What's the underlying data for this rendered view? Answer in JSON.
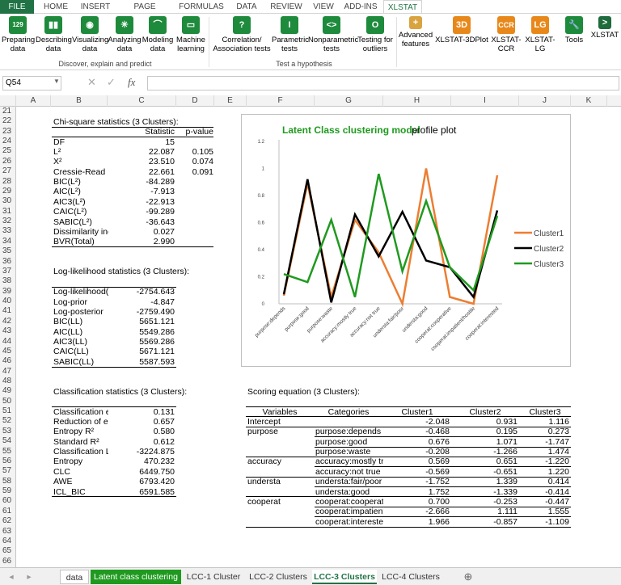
{
  "ribbon": {
    "tabs": [
      "FILE",
      "HOME",
      "INSERT",
      "PAGE LAYOUT",
      "FORMULAS",
      "DATA",
      "REVIEW",
      "VIEW",
      "ADD-INS",
      "XLSTAT"
    ],
    "buttons": [
      {
        "l1": "Preparing",
        "l2": "data",
        "icon": "129"
      },
      {
        "l1": "Describing",
        "l2": "data",
        "icon": "bars"
      },
      {
        "l1": "Visualizing",
        "l2": "data",
        "icon": "eye"
      },
      {
        "l1": "Analyzing",
        "l2": "data",
        "icon": "star"
      },
      {
        "l1": "Modeling",
        "l2": "data",
        "icon": "curve"
      },
      {
        "l1": "Machine",
        "l2": "learning",
        "icon": "screen"
      },
      {
        "l1": "Correlation/",
        "l2": "Association tests",
        "icon": "?"
      },
      {
        "l1": "Parametric",
        "l2": "tests",
        "icon": "I"
      },
      {
        "l1": "Nonparametric",
        "l2": "tests",
        "icon": "<>"
      },
      {
        "l1": "Testing for",
        "l2": "outliers",
        "icon": "O"
      },
      {
        "l1": "Advanced",
        "l2": "features",
        "icon": "+"
      },
      {
        "l1": "XLSTAT-3DPlot",
        "l2": "",
        "icon": "3D"
      },
      {
        "l1": "XLSTAT-",
        "l2": "CCR",
        "icon": "CCR"
      },
      {
        "l1": "XLSTAT-",
        "l2": "LG",
        "icon": "LG"
      },
      {
        "l1": "Tools",
        "l2": "",
        "icon": "wrench"
      },
      {
        "l1": "XLSTAT",
        "l2": "",
        "icon": ">"
      }
    ],
    "group1": "Discover, explain and predict",
    "group2": "Test a hypothesis"
  },
  "formula": {
    "namebox": "Q54",
    "fx": "fx",
    "value": ""
  },
  "columns": [
    "A",
    "B",
    "C",
    "D",
    "E",
    "F",
    "G",
    "H",
    "I",
    "J",
    "K"
  ],
  "rows": [
    21,
    22,
    23,
    24,
    25,
    26,
    27,
    28,
    29,
    30,
    31,
    32,
    33,
    34,
    35,
    36,
    37,
    38,
    39,
    40,
    41,
    42,
    43,
    44,
    45,
    46,
    47,
    48,
    49,
    50,
    51,
    52,
    53,
    54,
    55,
    56,
    57,
    58,
    59,
    60,
    61,
    62,
    63,
    64,
    65,
    66
  ],
  "chi": {
    "title": "Chi-square statistics (3 Clusters):",
    "hdr": [
      "Statistic",
      "p-value"
    ],
    "rows": [
      [
        "DF",
        "15",
        ""
      ],
      [
        "L²",
        "22.087",
        "0.105"
      ],
      [
        "X²",
        "23.510",
        "0.074"
      ],
      [
        "Cressie-Read",
        "22.661",
        "0.091"
      ],
      [
        "BIC(L²)",
        "-84.289",
        ""
      ],
      [
        "AIC(L²)",
        "-7.913",
        ""
      ],
      [
        "AIC3(L²)",
        "-22.913",
        ""
      ],
      [
        "CAIC(L²)",
        "-99.289",
        ""
      ],
      [
        "SABIC(L²)",
        "-36.643",
        ""
      ],
      [
        "Dissimilarity ind",
        "0.027",
        ""
      ],
      [
        "BVR(Total)",
        "2.990",
        ""
      ]
    ]
  },
  "ll": {
    "title": "Log-likelihood statistics (3 Clusters):",
    "rows": [
      [
        "Log-likelihood(L",
        "-2754.643"
      ],
      [
        "Log-prior",
        "-4.847"
      ],
      [
        "Log-posterior",
        "-2759.490"
      ],
      [
        "BIC(LL)",
        "5651.121"
      ],
      [
        "AIC(LL)",
        "5549.286"
      ],
      [
        "AIC3(LL)",
        "5569.286"
      ],
      [
        "CAIC(LL)",
        "5671.121"
      ],
      [
        "SABIC(LL)",
        "5587.593"
      ]
    ]
  },
  "cls": {
    "title": "Classification statistics (3 Clusters):",
    "rows": [
      [
        "Classification er",
        "0.131"
      ],
      [
        "Reduction of err",
        "0.657"
      ],
      [
        "Entropy R²",
        "0.580"
      ],
      [
        "Standard R²",
        "0.612"
      ],
      [
        "Classification Lo",
        "-3224.875"
      ],
      [
        "Entropy",
        "470.232"
      ],
      [
        "CLC",
        "6449.750"
      ],
      [
        "AWE",
        "6793.420"
      ],
      [
        "ICL_BIC",
        "6591.585"
      ]
    ]
  },
  "scoring": {
    "title": "Scoring equation (3 Clusters):",
    "hdr": [
      "Variables",
      "Categories",
      "Cluster1",
      "Cluster2",
      "Cluster3"
    ],
    "rows": [
      [
        "Intercept",
        "",
        "-2.048",
        "0.931",
        "1.116"
      ],
      [
        "purpose",
        "purpose:depends",
        "-0.468",
        "0.195",
        "0.273"
      ],
      [
        "",
        "purpose:good",
        "0.676",
        "1.071",
        "-1.747"
      ],
      [
        "",
        "purpose:waste",
        "-0.208",
        "-1.266",
        "1.474"
      ],
      [
        "accuracy",
        "accuracy:mostly tru",
        "0.569",
        "0.651",
        "-1.220"
      ],
      [
        "",
        "accuracy:not true",
        "-0.569",
        "-0.651",
        "1.220"
      ],
      [
        "understa",
        "understa:fair/poor",
        "-1.752",
        "1.339",
        "0.414"
      ],
      [
        "",
        "understa:good",
        "1.752",
        "-1.339",
        "-0.414"
      ],
      [
        "cooperat",
        "cooperat:cooperativ",
        "0.700",
        "-0.253",
        "-0.447"
      ],
      [
        "",
        "cooperat:impatient/l",
        "-2.666",
        "1.111",
        "1.555"
      ],
      [
        "",
        "cooperat:interested",
        "1.966",
        "-0.857",
        "-1.109"
      ]
    ]
  },
  "chart_data": {
    "type": "line",
    "title_green": "Latent Class clustering model",
    "title_rest": " profile plot",
    "categories": [
      "purpose:depends",
      "purpose:good",
      "purpose:waste",
      "accuracy:mostly true",
      "accuracy:not true",
      "understa:fair/poor",
      "understa:good",
      "cooperat:cooperative",
      "cooperat:impatient/hostile",
      "cooperat:interested"
    ],
    "yticks": [
      "0",
      "0.2",
      "0.4",
      "0.6",
      "0.8",
      "1",
      "1.2"
    ],
    "ylim": [
      0,
      1.2
    ],
    "series": [
      {
        "name": "Cluster1",
        "color": "#ed7d31",
        "values": [
          0.06,
          0.89,
          0.05,
          0.62,
          0.38,
          0.0,
          1.0,
          0.05,
          0.0,
          0.95
        ]
      },
      {
        "name": "Cluster2",
        "color": "#000000",
        "values": [
          0.07,
          0.92,
          0.01,
          0.66,
          0.35,
          0.68,
          0.32,
          0.27,
          0.05,
          0.69
        ]
      },
      {
        "name": "Cluster3",
        "color": "#1f9a1f",
        "values": [
          0.22,
          0.16,
          0.62,
          0.05,
          0.96,
          0.24,
          0.76,
          0.27,
          0.1,
          0.65
        ]
      }
    ],
    "legend": "right"
  },
  "sheets": [
    "data",
    "Latent class clustering",
    "LCC-1 Cluster",
    "LCC-2 Clusters",
    "LCC-3 Clusters",
    "LCC-4 Clusters"
  ],
  "sheet_add": "⊕"
}
